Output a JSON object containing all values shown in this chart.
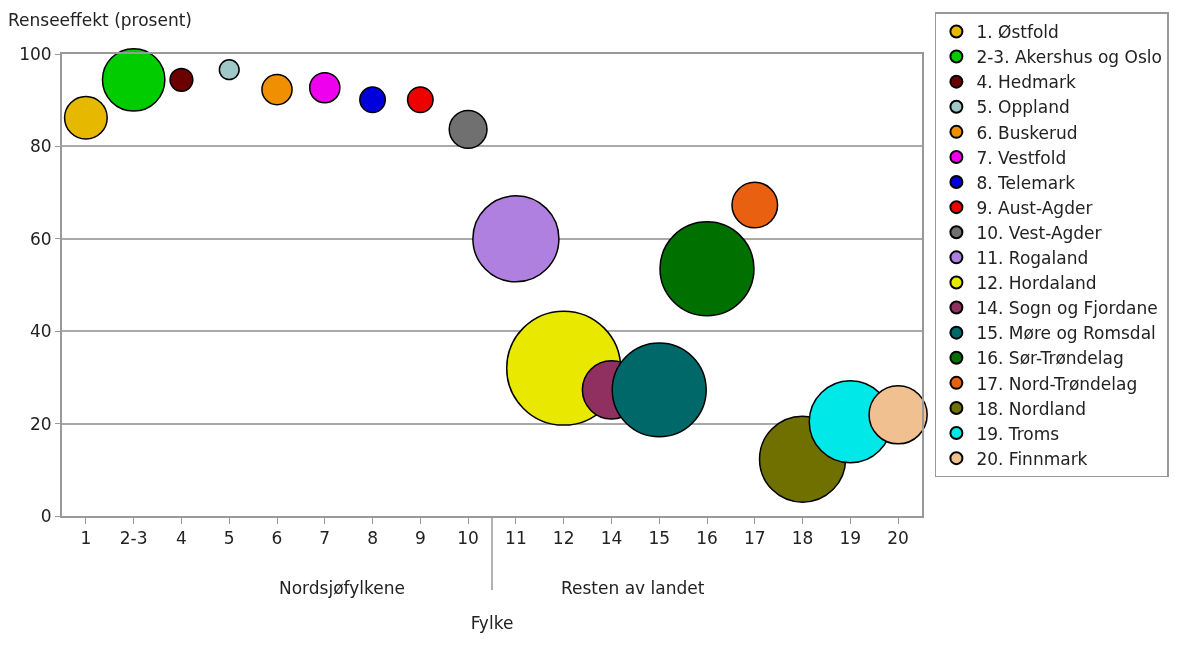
{
  "chart_data": {
    "type": "bubble",
    "ylabel": "Renseeffekt (prosent)",
    "xlabel": "Fylke",
    "categories": [
      "1",
      "2-3",
      "4",
      "5",
      "6",
      "7",
      "8",
      "9",
      "10",
      "11",
      "12",
      "14",
      "15",
      "16",
      "17",
      "18",
      "19",
      "20"
    ],
    "ylim": [
      0,
      100
    ],
    "yticks": [
      0,
      20,
      40,
      60,
      80,
      100
    ],
    "grid": "y",
    "legend": "right",
    "marker": "circle",
    "annotations": [
      "Nordsjøfylkene",
      "Resten av landet"
    ],
    "series": [
      {
        "name": "1. Østfold",
        "color": "#e6b800",
        "x": [
          "1"
        ],
        "values": [
          86.2
        ],
        "sizes": [
          0.14
        ]
      },
      {
        "name": "2-3. Akershus og Oslo",
        "color": "#00cc00",
        "x": [
          "2-3"
        ],
        "values": [
          94.4
        ],
        "sizes": [
          0.3
        ]
      },
      {
        "name": "4. Hedmark",
        "color": "#6b0000",
        "x": [
          "4"
        ],
        "values": [
          94.4
        ],
        "sizes": [
          0.04
        ]
      },
      {
        "name": "5. Oppland",
        "color": "#a0c8c8",
        "x": [
          "5"
        ],
        "values": [
          96.6
        ],
        "sizes": [
          0.03
        ]
      },
      {
        "name": "6. Buskerud",
        "color": "#f09000",
        "x": [
          "6"
        ],
        "values": [
          92.3
        ],
        "sizes": [
          0.07
        ]
      },
      {
        "name": "7. Vestfold",
        "color": "#ee00ee",
        "x": [
          "7"
        ],
        "values": [
          92.7
        ],
        "sizes": [
          0.07
        ]
      },
      {
        "name": "8. Telemark",
        "color": "#0000dd",
        "x": [
          "8"
        ],
        "values": [
          90.1
        ],
        "sizes": [
          0.05
        ]
      },
      {
        "name": "9. Aust-Agder",
        "color": "#ee0000",
        "x": [
          "9"
        ],
        "values": [
          90.1
        ],
        "sizes": [
          0.05
        ]
      },
      {
        "name": "10. Vest-Agder",
        "color": "#707070",
        "x": [
          "10"
        ],
        "values": [
          83.7
        ],
        "sizes": [
          0.11
        ]
      },
      {
        "name": "11. Rogaland",
        "color": "#b080e0",
        "x": [
          "11"
        ],
        "values": [
          60
        ],
        "sizes": [
          0.57
        ]
      },
      {
        "name": "12. Hordaland",
        "color": "#e8e800",
        "x": [
          "12"
        ],
        "values": [
          32
        ],
        "sizes": [
          1
        ]
      },
      {
        "name": "14. Sogn og Fjordane",
        "color": "#903060",
        "x": [
          "14"
        ],
        "values": [
          27.3
        ],
        "sizes": [
          0.26
        ]
      },
      {
        "name": "15. Møre og Romsdal",
        "color": "#006868",
        "x": [
          "15"
        ],
        "values": [
          27.3
        ],
        "sizes": [
          0.68
        ]
      },
      {
        "name": "16. Sør-Trøndelag",
        "color": "#007000",
        "x": [
          "16"
        ],
        "values": [
          53.5
        ],
        "sizes": [
          0.68
        ]
      },
      {
        "name": "17. Nord-Trøndelag",
        "color": "#e86010",
        "x": [
          "17"
        ],
        "values": [
          67.3
        ],
        "sizes": [
          0.16
        ]
      },
      {
        "name": "18. Nordland",
        "color": "#707000",
        "x": [
          "18"
        ],
        "values": [
          12.3
        ],
        "sizes": [
          0.57
        ]
      },
      {
        "name": "19. Troms",
        "color": "#00e8e8",
        "x": [
          "19"
        ],
        "values": [
          20.4
        ],
        "sizes": [
          0.52
        ]
      },
      {
        "name": "20. Finnmark",
        "color": "#f0c090",
        "x": [
          "20"
        ],
        "values": [
          21.9
        ],
        "sizes": [
          0.26
        ]
      }
    ]
  }
}
